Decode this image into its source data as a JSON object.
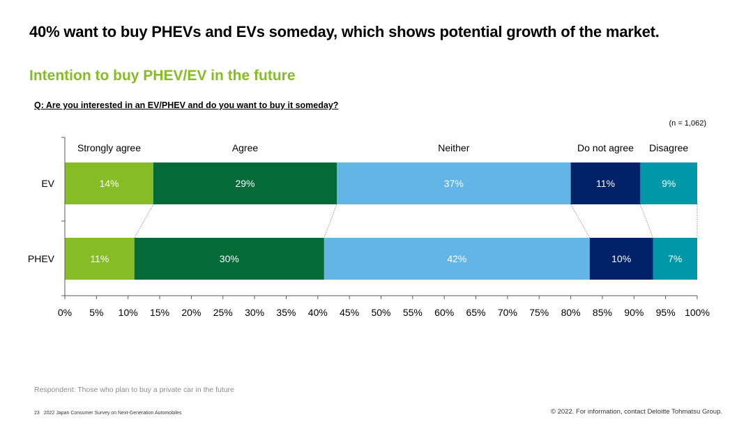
{
  "page": {
    "headline": "40% want to buy PHEVs and EVs someday, which shows potential growth of the market.",
    "subtitle": "Intention to buy PHEV/EV in the future",
    "question": "Q: Are you interested in an EV/PHEV and do you want to buy it someday?",
    "n_note": "(n = 1,062)",
    "respondent": "Respondent: Those who plan to buy a private car in the future",
    "page_number": "23",
    "report_name": "2022 Japan Consumer Survey on Next-Generation Automobiles",
    "copyright": "© 2022. For information, contact Deloitte Tohmatsu Group."
  },
  "chart_data": {
    "type": "bar",
    "orientation": "horizontal",
    "stacked": true,
    "categories": [
      "EV",
      "PHEV"
    ],
    "series": [
      {
        "name": "Strongly agree",
        "values": [
          14,
          11
        ],
        "labels": [
          "14%",
          "11%"
        ],
        "color": "#86bc25"
      },
      {
        "name": "Agree",
        "values": [
          29,
          30
        ],
        "labels": [
          "29%",
          "30%"
        ],
        "color": "#046a38"
      },
      {
        "name": "Neither",
        "values": [
          37,
          42
        ],
        "labels": [
          "37%",
          "42%"
        ],
        "color": "#62b5e5"
      },
      {
        "name": "Do not agree",
        "values": [
          11,
          10
        ],
        "labels": [
          "11%",
          "10%"
        ],
        "color": "#012169"
      },
      {
        "name": "Disagree",
        "values": [
          9,
          7
        ],
        "labels": [
          "9%",
          "7%"
        ],
        "color": "#0097a9"
      }
    ],
    "xlim": [
      0,
      100
    ],
    "x_ticks": [
      "0%",
      "5%",
      "10%",
      "15%",
      "20%",
      "25%",
      "30%",
      "35%",
      "40%",
      "45%",
      "50%",
      "55%",
      "60%",
      "65%",
      "70%",
      "75%",
      "80%",
      "85%",
      "90%",
      "95%",
      "100%"
    ],
    "series_lines": true,
    "legend": "top, above first bar"
  }
}
